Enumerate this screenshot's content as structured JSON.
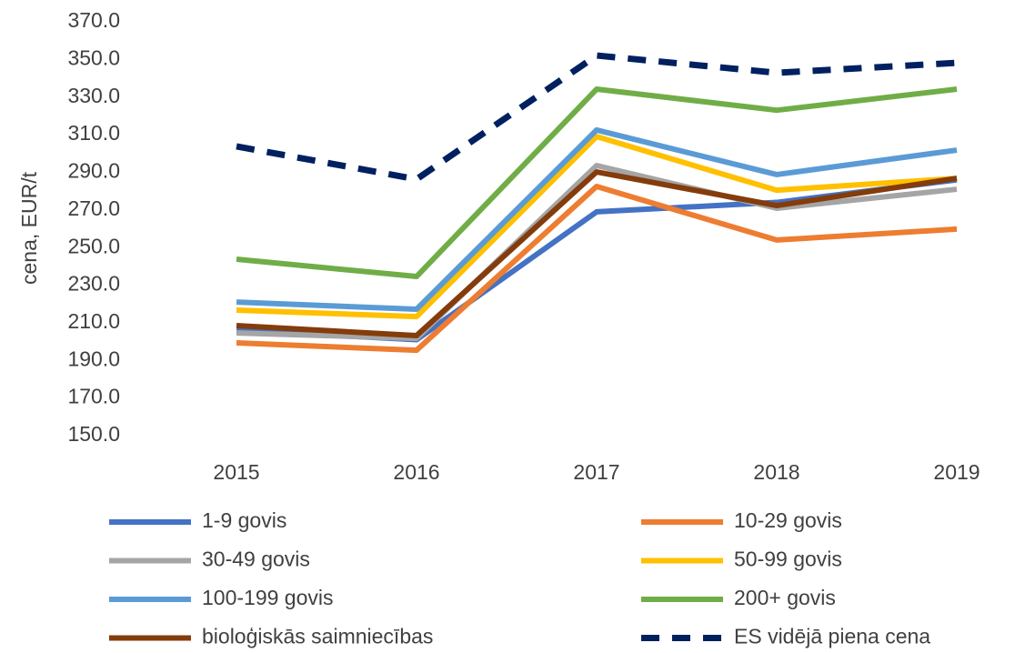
{
  "chart_data": {
    "type": "line",
    "y_label": "cena, EUR/t",
    "categories": [
      "2015",
      "2016",
      "2017",
      "2018",
      "2019"
    ],
    "ylim": [
      150,
      370
    ],
    "yticks": [
      {
        "value": 150,
        "label": "150.0"
      },
      {
        "value": 170,
        "label": "170.0"
      },
      {
        "value": 190,
        "label": "190.0"
      },
      {
        "value": 210,
        "label": "210.0"
      },
      {
        "value": 230,
        "label": "230.0"
      },
      {
        "value": 250,
        "label": "250.0"
      },
      {
        "value": 270,
        "label": "270.0"
      },
      {
        "value": 290,
        "label": "290.0"
      },
      {
        "value": 310,
        "label": "310.0"
      },
      {
        "value": 330,
        "label": "330.0"
      },
      {
        "value": 350,
        "label": "350.0"
      },
      {
        "value": 370,
        "label": "370.0"
      }
    ],
    "grid": false,
    "series": [
      {
        "name": "1-9 govis",
        "color": "#4472c4",
        "values": [
          206,
          201,
          269,
          274,
          286
        ]
      },
      {
        "name": "10-29 govis",
        "color": "#ed7d31",
        "values": [
          199.3,
          195.4,
          282.5,
          254,
          259.8
        ]
      },
      {
        "name": "30-49 govis",
        "color": "#a5a5a5",
        "values": [
          204.6,
          201.7,
          293.6,
          270.9,
          281
        ]
      },
      {
        "name": "50-99 govis",
        "color": "#ffc000",
        "values": [
          216.7,
          213.3,
          309,
          280.5,
          286.8
        ]
      },
      {
        "name": "100-199 govis",
        "color": "#5b9bd5",
        "values": [
          221,
          217.2,
          312.5,
          288.8,
          301.8
        ]
      },
      {
        "name": "200+ govis",
        "color": "#70ad47",
        "values": [
          243.8,
          234.6,
          334.2,
          323,
          334.2
        ]
      },
      {
        "name": "bioloģiskās saimniecības",
        "color": "#843c0c",
        "values": [
          208.5,
          203.2,
          290.2,
          272.3,
          286.8
        ]
      },
      {
        "name": "ES vidējā piena cena",
        "color": "#002060",
        "style": "dashed",
        "values": [
          303.8,
          286.3,
          352.1,
          342.9,
          348.2
        ]
      }
    ]
  }
}
